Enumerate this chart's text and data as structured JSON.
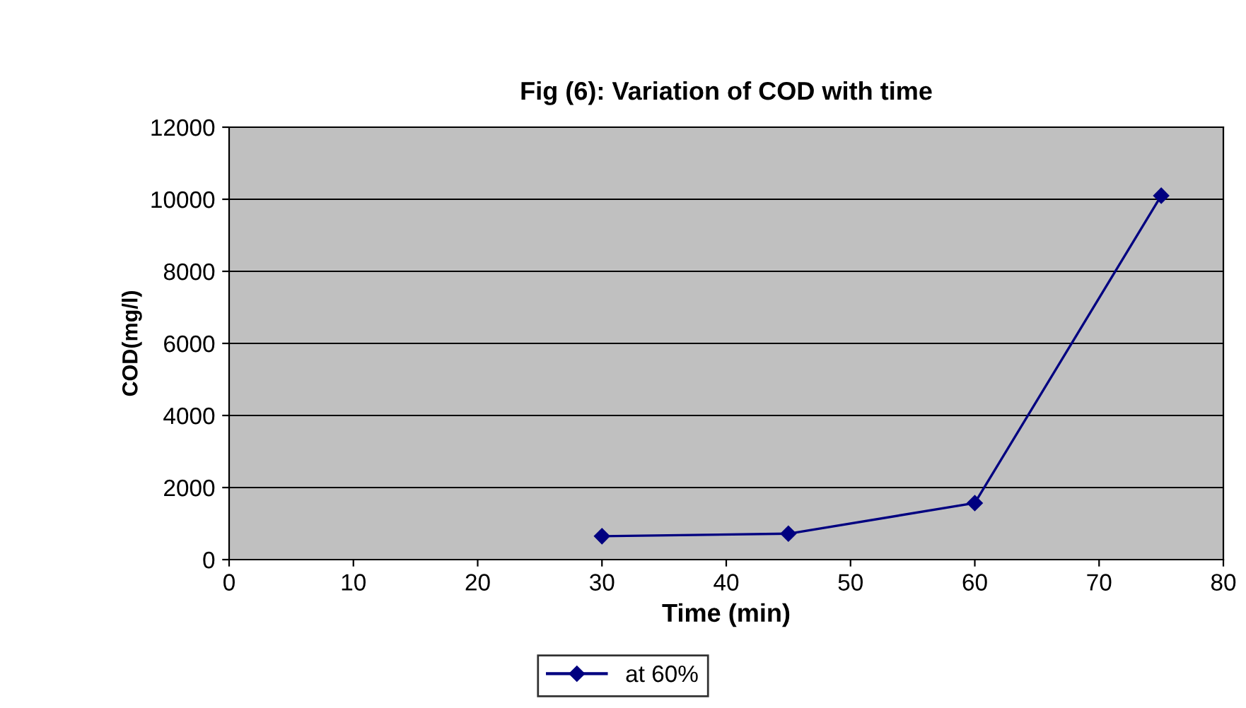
{
  "chart_data": {
    "type": "line",
    "title": "Fig (6): Variation of COD with time",
    "xlabel": "Time (min)",
    "ylabel": "COD(mg/l)",
    "x": [
      30,
      45,
      60,
      75
    ],
    "series": [
      {
        "name": "at 60%",
        "color": "#000080",
        "values": [
          650,
          720,
          1570,
          10100
        ]
      }
    ],
    "xlim": [
      0,
      80
    ],
    "xticks": [
      0,
      10,
      20,
      30,
      40,
      50,
      60,
      70,
      80
    ],
    "ylim": [
      0,
      12000
    ],
    "yticks": [
      0,
      2000,
      4000,
      6000,
      8000,
      10000,
      12000
    ],
    "grid": "y",
    "legend": "bottom",
    "marker": "diamond",
    "line_style": "solid"
  }
}
